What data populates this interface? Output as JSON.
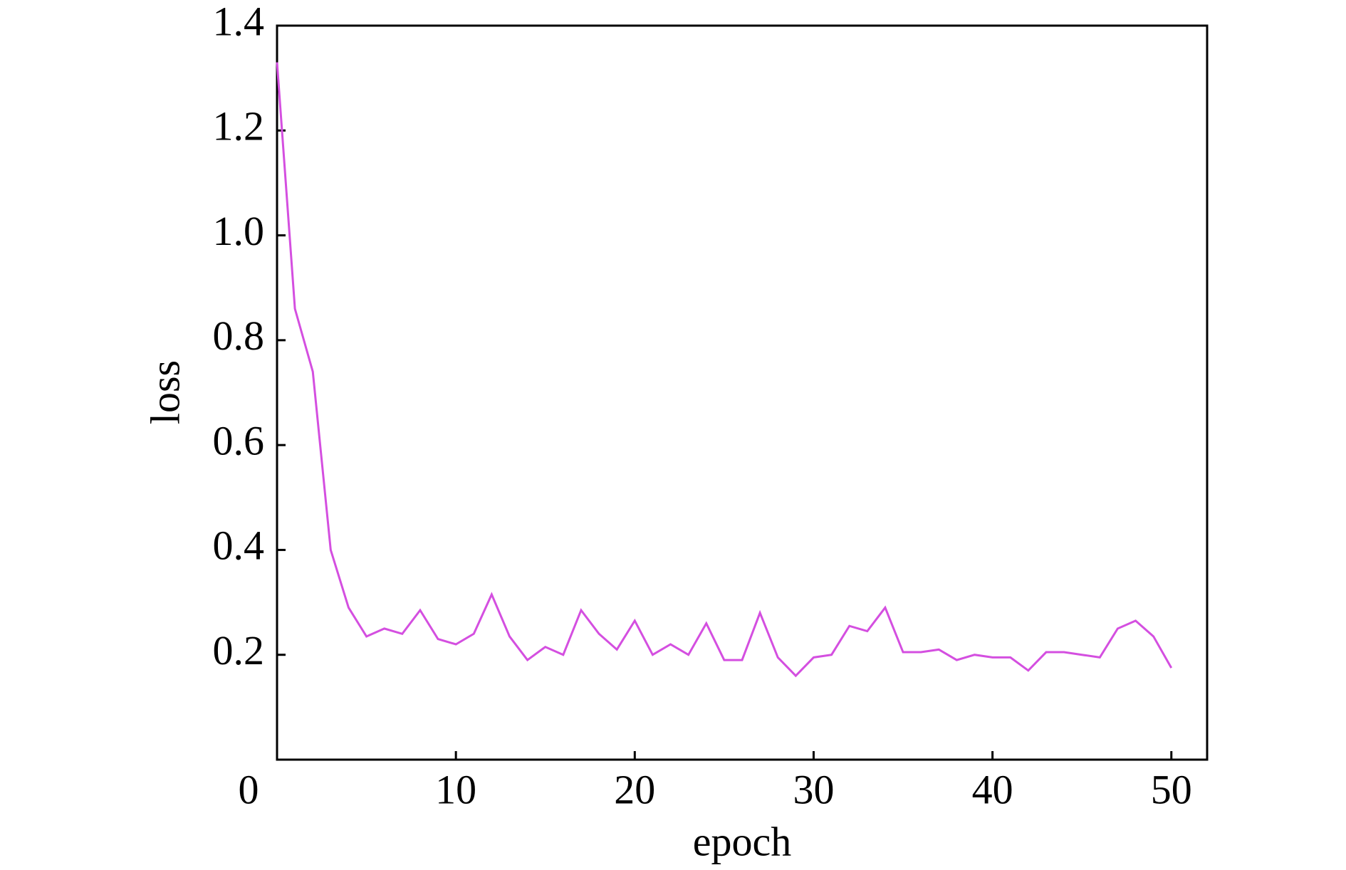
{
  "chart_data": {
    "type": "line",
    "x": [
      0,
      1,
      2,
      3,
      4,
      5,
      6,
      7,
      8,
      9,
      10,
      11,
      12,
      13,
      14,
      15,
      16,
      17,
      18,
      19,
      20,
      21,
      22,
      23,
      24,
      25,
      26,
      27,
      28,
      29,
      30,
      31,
      32,
      33,
      34,
      35,
      36,
      37,
      38,
      39,
      40,
      41,
      42,
      43,
      44,
      45,
      46,
      47,
      48,
      49,
      50
    ],
    "series": [
      {
        "color": "#d44fe0",
        "values": [
          1.33,
          0.86,
          0.74,
          0.4,
          0.29,
          0.235,
          0.25,
          0.24,
          0.285,
          0.23,
          0.22,
          0.24,
          0.315,
          0.235,
          0.19,
          0.215,
          0.2,
          0.285,
          0.24,
          0.21,
          0.265,
          0.2,
          0.22,
          0.2,
          0.26,
          0.19,
          0.19,
          0.28,
          0.195,
          0.16,
          0.195,
          0.2,
          0.255,
          0.245,
          0.29,
          0.205,
          0.205,
          0.21,
          0.19,
          0.2,
          0.195,
          0.195,
          0.17,
          0.205,
          0.205,
          0.2,
          0.195,
          0.25,
          0.265,
          0.235,
          0.175
        ]
      }
    ],
    "x_label": "epoch",
    "y_label": "loss",
    "xlim": [
      0,
      52
    ],
    "xticks": [
      0,
      10,
      20,
      30,
      40,
      50
    ],
    "ylim": [
      0,
      1.4
    ],
    "yticks": [
      0.2,
      0.4,
      0.6,
      0.8,
      1.0,
      1.2,
      1.4
    ]
  }
}
